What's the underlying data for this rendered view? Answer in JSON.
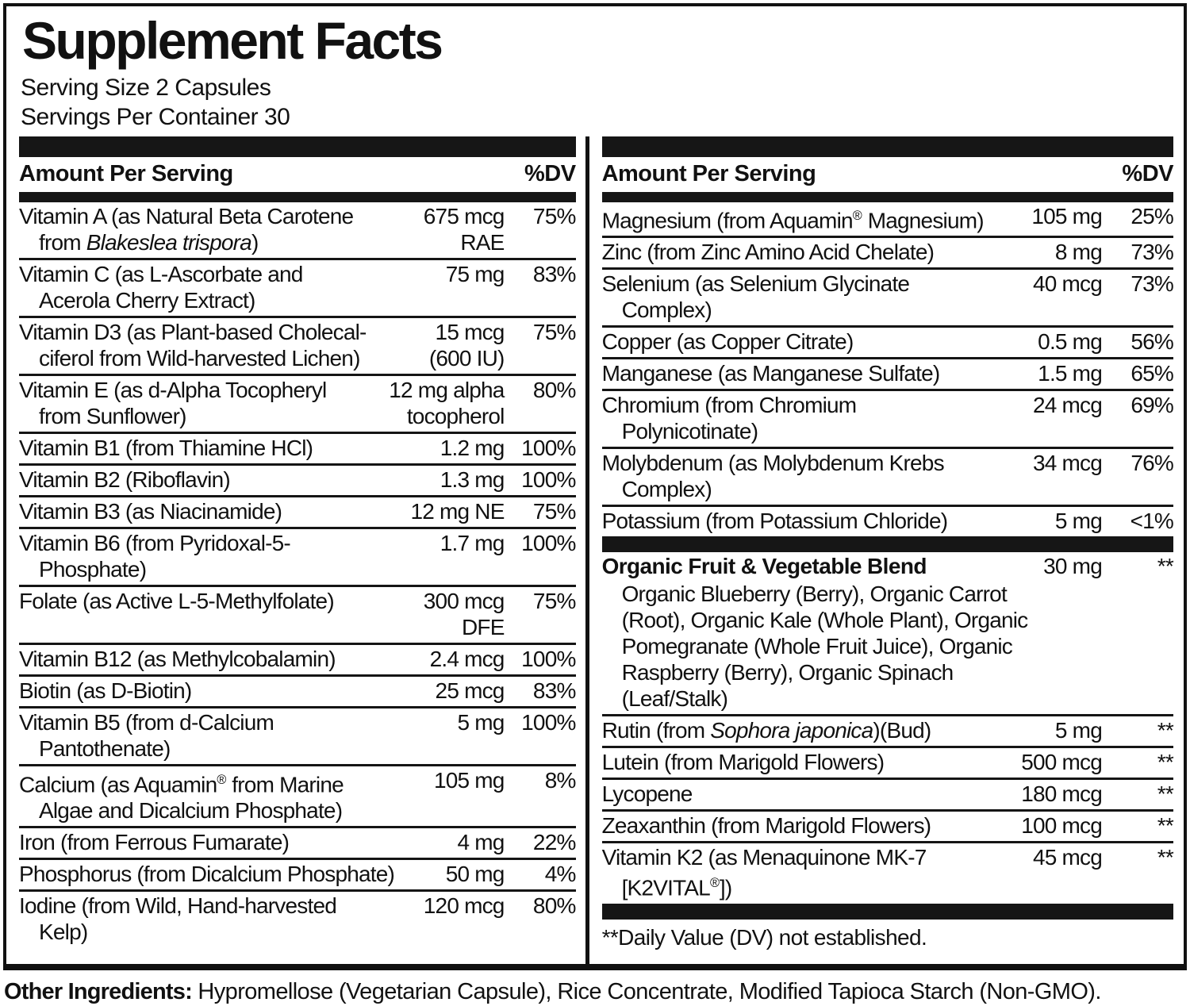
{
  "header": {
    "title": "Supplement Facts",
    "serving_size": "Serving Size 2 Capsules",
    "servings_per_container": "Servings Per Container 30"
  },
  "table": {
    "column_header": {
      "amount_label": "Amount Per Serving",
      "dv_label": "%DV"
    },
    "left_rows": [
      {
        "name": [
          {
            "t": "Vitamin A (as Natural Beta Carotene\nfrom "
          },
          {
            "t": "Blakeslea trispora",
            "i": true
          },
          {
            "t": ")"
          }
        ],
        "amount": "675 mcg\nRAE",
        "dv": "75%"
      },
      {
        "name": "Vitamin C (as L-Ascorbate and\nAcerola Cherry Extract)",
        "amount": "75 mg",
        "dv": "83%"
      },
      {
        "name": "Vitamin D3 (as Plant-based Cholecal-\nciferol from Wild-harvested Lichen)",
        "amount": "15 mcg\n(600 IU)",
        "dv": "75%"
      },
      {
        "name": "Vitamin E (as d-Alpha Tocopheryl\nfrom Sunflower)",
        "amount": "12 mg alpha\ntocopherol",
        "dv": "80%"
      },
      {
        "name": "Vitamin B1 (from Thiamine HCl)",
        "amount": "1.2 mg",
        "dv": "100%"
      },
      {
        "name": "Vitamin B2 (Riboflavin)",
        "amount": "1.3 mg",
        "dv": "100%"
      },
      {
        "name": "Vitamin B3 (as Niacinamide)",
        "amount": "12 mg NE",
        "dv": "75%"
      },
      {
        "name": "Vitamin B6 (from Pyridoxal-5-\nPhosphate)",
        "amount": "1.7 mg",
        "dv": "100%"
      },
      {
        "name": "Folate (as Active L-5-Methylfolate)",
        "amount": "300 mcg\nDFE",
        "dv": "75%"
      },
      {
        "name": "Vitamin B12 (as Methylcobalamin)",
        "amount": "2.4 mcg",
        "dv": "100%"
      },
      {
        "name": "Biotin (as D-Biotin)",
        "amount": "25 mcg",
        "dv": "83%"
      },
      {
        "name": "Vitamin B5 (from d-Calcium\nPantothenate)",
        "amount": "5 mg",
        "dv": "100%"
      },
      {
        "name": [
          {
            "t": "Calcium (as Aquamin"
          },
          {
            "t": "®",
            "s": true
          },
          {
            "t": " from Marine\nAlgae and Dicalcium Phosphate)"
          }
        ],
        "amount": "105 mg",
        "dv": "8%"
      },
      {
        "name": "Iron (from Ferrous Fumarate)",
        "amount": "4 mg",
        "dv": "22%"
      },
      {
        "name": "Phosphorus (from Dicalcium Phosphate)",
        "amount": "50 mg",
        "dv": "4%"
      },
      {
        "name": "Iodine (from Wild, Hand-harvested\nKelp)",
        "amount": "120 mcg",
        "dv": "80%"
      }
    ],
    "right": {
      "top_rows": [
        {
          "name": [
            {
              "t": "Magnesium (from Aquamin"
            },
            {
              "t": "®",
              "s": true
            },
            {
              "t": " Magnesium)"
            }
          ],
          "amount": "105 mg",
          "dv": "25%"
        },
        {
          "name": "Zinc (from Zinc Amino Acid Chelate)",
          "amount": "8 mg",
          "dv": "73%"
        },
        {
          "name": "Selenium (as Selenium Glycinate\nComplex)",
          "amount": "40 mcg",
          "dv": "73%"
        },
        {
          "name": "Copper (as Copper Citrate)",
          "amount": "0.5 mg",
          "dv": "56%"
        },
        {
          "name": "Manganese (as Manganese Sulfate)",
          "amount": "1.5 mg",
          "dv": "65%"
        },
        {
          "name": "Chromium (from Chromium\nPolynicotinate)",
          "amount": "24 mcg",
          "dv": "69%"
        },
        {
          "name": "Molybdenum (as Molybdenum Krebs\nComplex)",
          "amount": "34 mcg",
          "dv": "76%"
        },
        {
          "name": "Potassium (from Potassium Chloride)",
          "amount": "5 mg",
          "dv": "<1%"
        }
      ],
      "blend": {
        "name": "Organic Fruit & Vegetable Blend",
        "amount": "30 mg",
        "dv": "**",
        "ingredients": "Organic Blueberry (Berry), Organic Carrot\n(Root), Organic Kale (Whole Plant), Organic\nPomegranate (Whole Fruit Juice), Organic\nRaspberry (Berry), Organic Spinach\n(Leaf/Stalk)"
      },
      "bottom_rows": [
        {
          "name": [
            {
              "t": "Rutin (from "
            },
            {
              "t": "Sophora japonica",
              "i": true
            },
            {
              "t": ")(Bud)"
            }
          ],
          "amount": "5 mg",
          "dv": "**"
        },
        {
          "name": "Lutein (from Marigold Flowers)",
          "amount": "500 mcg",
          "dv": "**"
        },
        {
          "name": "Lycopene",
          "amount": "180 mcg",
          "dv": "**"
        },
        {
          "name": "Zeaxanthin (from Marigold Flowers)",
          "amount": "100 mcg",
          "dv": "**"
        },
        {
          "name": [
            {
              "t": "Vitamin K2 (as Menaquinone MK-7\n[K2VITAL"
            },
            {
              "t": "®",
              "s": true
            },
            {
              "t": "])"
            }
          ],
          "amount": "45 mcg",
          "dv": "**"
        }
      ],
      "footnote": "**Daily Value (DV) not established."
    }
  },
  "other_ingredients": {
    "label": "Other Ingredients:",
    "text": " Hypromellose (Vegetarian Capsule), Rice Concentrate, Modified Tapioca Starch (Non-GMO)."
  },
  "colors": {
    "ink": "#111111",
    "paper": "#ffffff",
    "bar": "#161616"
  }
}
